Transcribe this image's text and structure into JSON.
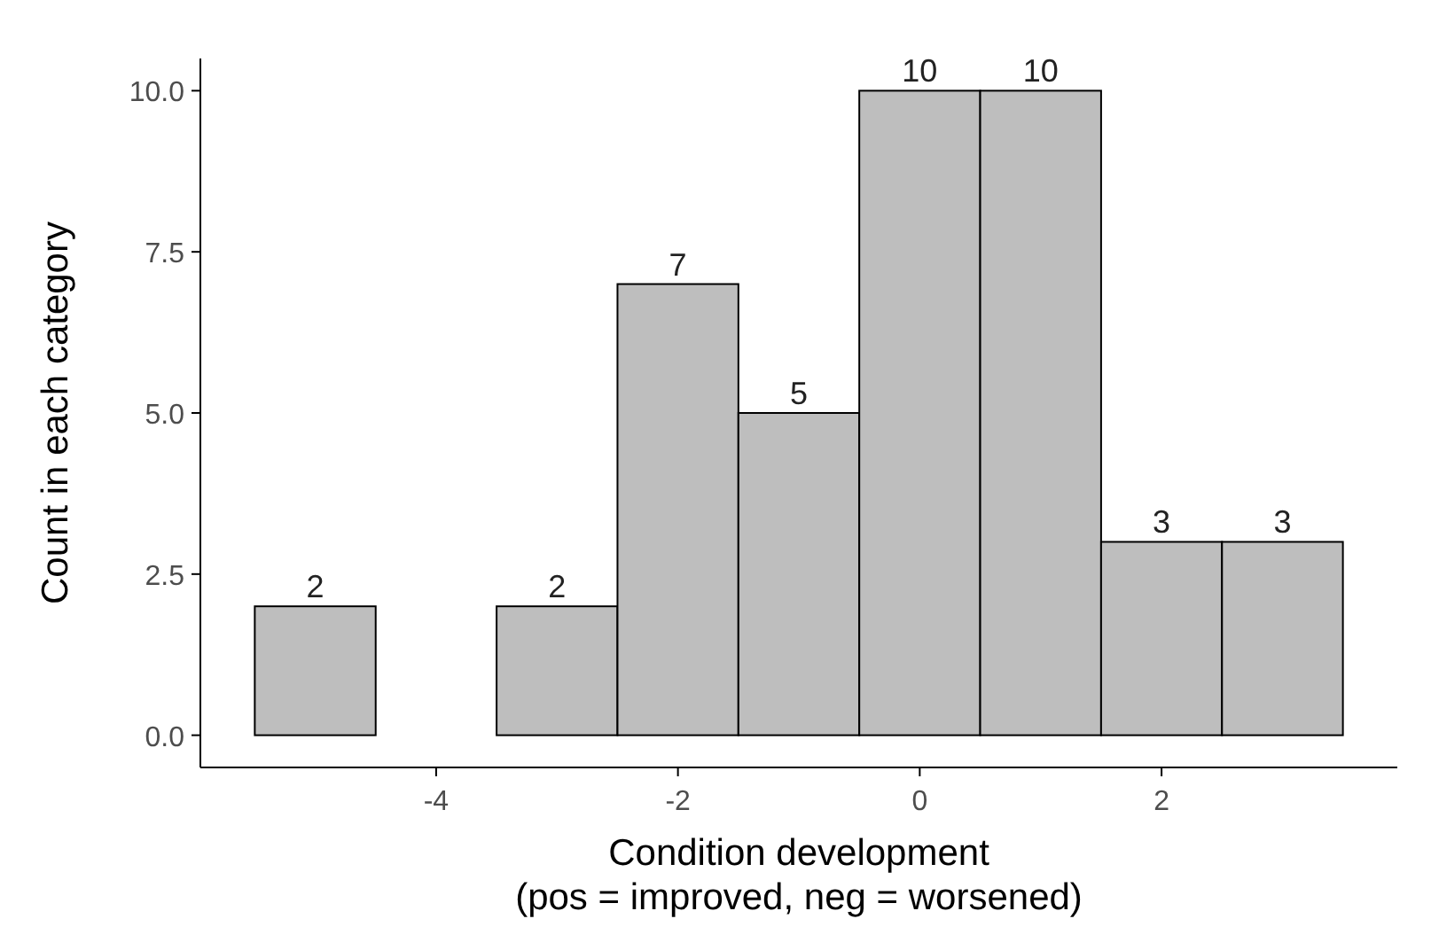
{
  "chart_data": {
    "type": "histogram",
    "xlabel": "Condition development\n(pos = improved, neg = worsened)",
    "ylabel": "Count in each category",
    "bins": [
      -5.5,
      -4.5,
      -3.5,
      -2.5,
      -1.5,
      -0.5,
      0.5,
      1.5,
      2.5,
      3.5
    ],
    "values": [
      2,
      0,
      2,
      7,
      5,
      10,
      10,
      3,
      3
    ],
    "value_labels": [
      "2",
      null,
      "2",
      "7",
      "5",
      "10",
      "10",
      "3",
      "3"
    ],
    "color": "#bebebe",
    "xlim": [
      -5.95,
      3.95
    ],
    "xticks": [
      -4,
      -2,
      0,
      2
    ],
    "ylim": [
      -0.5,
      10.5
    ],
    "yticks": [
      {
        "value": 0,
        "label": "0.0"
      },
      {
        "value": 2.5,
        "label": "2.5"
      },
      {
        "value": 5,
        "label": "5.0"
      },
      {
        "value": 7.5,
        "label": "7.5"
      },
      {
        "value": 10,
        "label": "10.0"
      }
    ],
    "grid": false
  }
}
